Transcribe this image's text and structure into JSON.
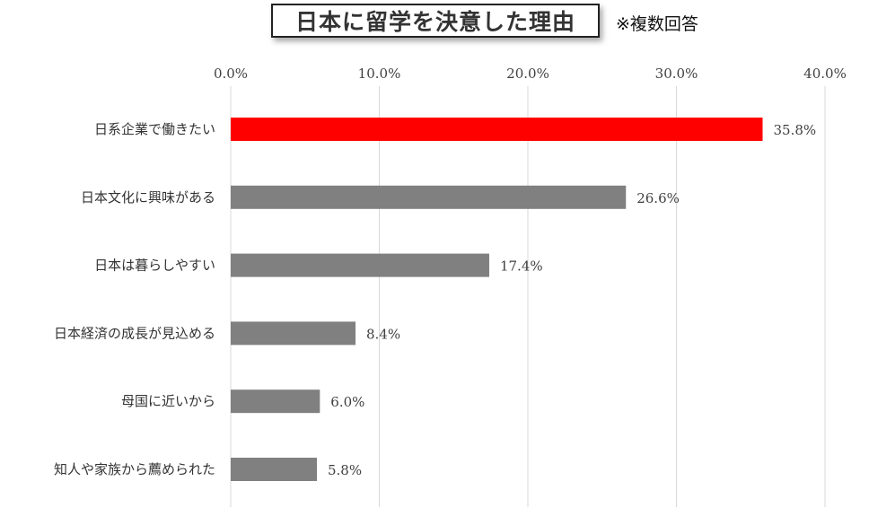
{
  "title": "日本に留学を決意した理由",
  "subtitle": "※複数回答",
  "colors": {
    "highlight": "#ff0000",
    "bar": "#808080",
    "grid": "#d9d9d9",
    "text": "#404040"
  },
  "chart_data": {
    "type": "bar",
    "orientation": "horizontal",
    "title": "日本に留学を決意した理由",
    "subtitle": "※複数回答",
    "xlabel": "",
    "ylabel": "",
    "xlim": [
      0,
      40
    ],
    "tick_labels": [
      "0.0%",
      "10.0%",
      "20.0%",
      "30.0%",
      "40.0%"
    ],
    "tick_values": [
      0,
      10,
      20,
      30,
      40
    ],
    "axis_position": "top",
    "grid": true,
    "categories": [
      "日系企業で働きたい",
      "日本文化に興味がある",
      "日本は暮らしやすい",
      "日本経済の成長が見込める",
      "母国に近いから",
      "知人や家族から薦められた"
    ],
    "values": [
      35.8,
      26.6,
      17.4,
      8.4,
      6.0,
      5.8
    ],
    "data_labels": [
      "35.8%",
      "26.6%",
      "17.4%",
      "8.4%",
      "6.0%",
      "5.8%"
    ],
    "highlight_index": 0
  }
}
